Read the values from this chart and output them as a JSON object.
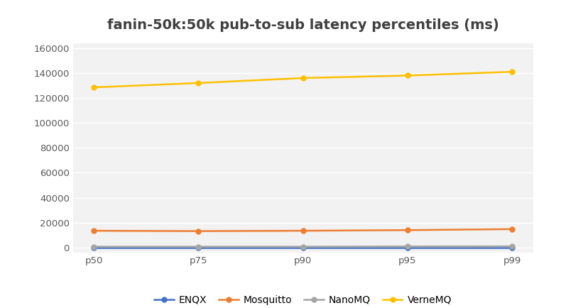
{
  "title": "fanin-50k:50k pub-to-sub latency percentiles (ms)",
  "categories": [
    "p50",
    "p75",
    "p90",
    "p95",
    "p99"
  ],
  "series": [
    {
      "name": "ENQX",
      "values": [
        100,
        100,
        100,
        100,
        100
      ],
      "color": "#4472C4",
      "marker": "o",
      "markersize": 5,
      "linewidth": 1.8
    },
    {
      "name": "Mosquitto",
      "values": [
        13500,
        13200,
        13500,
        14000,
        14800
      ],
      "color": "#ED7D31",
      "marker": "o",
      "markersize": 5,
      "linewidth": 1.8
    },
    {
      "name": "NanoMQ",
      "values": [
        700,
        700,
        700,
        900,
        1000
      ],
      "color": "#A5A5A5",
      "marker": "o",
      "markersize": 5,
      "linewidth": 1.8
    },
    {
      "name": "VerneMQ",
      "values": [
        128500,
        132000,
        136000,
        138000,
        141000
      ],
      "color": "#FFC000",
      "marker": "o",
      "markersize": 5,
      "linewidth": 1.8
    }
  ],
  "ylim": [
    -4000,
    164000
  ],
  "yticks": [
    0,
    20000,
    40000,
    60000,
    80000,
    100000,
    120000,
    140000,
    160000
  ],
  "plot_bg_color": "#F2F2F2",
  "fig_bg_color": "#FFFFFF",
  "grid_color": "#FFFFFF",
  "title_fontsize": 14,
  "tick_fontsize": 9.5,
  "legend_fontsize": 10
}
